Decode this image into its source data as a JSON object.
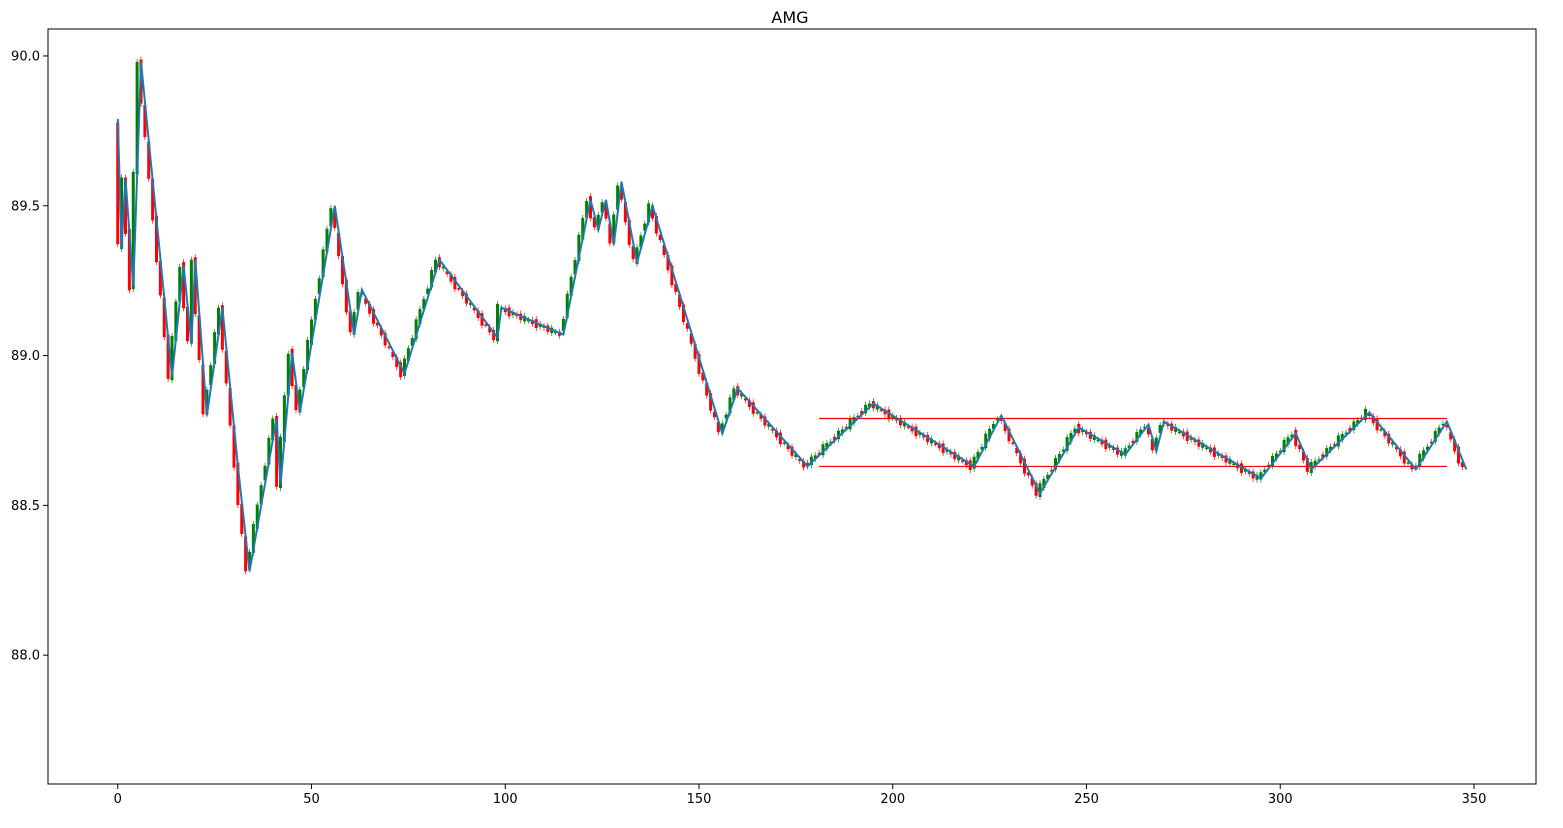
{
  "chart_data": {
    "type": "candlestick",
    "title": "AMG",
    "xlabel": "",
    "ylabel": "",
    "xlim": [
      -18,
      366
    ],
    "ylim": [
      87.57,
      90.09
    ],
    "x_ticks": [
      0,
      50,
      100,
      150,
      200,
      250,
      300,
      350
    ],
    "y_ticks": [
      88.0,
      88.5,
      89.0,
      89.5,
      90.0
    ],
    "x_tick_labels": [
      "0",
      "50",
      "100",
      "150",
      "200",
      "250",
      "300",
      "350"
    ],
    "y_tick_labels": [
      "88.0",
      "88.5",
      "89.0",
      "89.5",
      "90.0"
    ],
    "grid": false,
    "colors": {
      "up": "#008000",
      "down": "#ff0000",
      "zigzag": "#1f77b4",
      "channel": "#ff0000",
      "axes": "#000000"
    },
    "zigzag_points": [
      [
        0,
        89.79
      ],
      [
        1,
        89.36
      ],
      [
        2,
        89.59
      ],
      [
        4,
        89.23
      ],
      [
        6,
        89.98
      ],
      [
        14,
        88.93
      ],
      [
        17,
        89.3
      ],
      [
        19,
        89.04
      ],
      [
        20,
        89.32
      ],
      [
        23,
        88.8
      ],
      [
        27,
        89.16
      ],
      [
        31,
        88.63
      ],
      [
        34,
        88.28
      ],
      [
        41,
        88.79
      ],
      [
        42,
        88.57
      ],
      [
        45,
        89.01
      ],
      [
        47,
        88.81
      ],
      [
        56,
        89.5
      ],
      [
        61,
        89.07
      ],
      [
        63,
        89.22
      ],
      [
        74,
        88.94
      ],
      [
        83,
        89.32
      ],
      [
        98,
        89.06
      ],
      [
        99,
        89.16
      ],
      [
        115,
        89.07
      ],
      [
        122,
        89.52
      ],
      [
        124,
        89.42
      ],
      [
        126,
        89.52
      ],
      [
        128,
        89.37
      ],
      [
        130,
        89.58
      ],
      [
        134,
        89.31
      ],
      [
        138,
        89.5
      ],
      [
        156,
        88.74
      ],
      [
        160,
        88.89
      ],
      [
        178,
        88.63
      ],
      [
        195,
        88.84
      ],
      [
        221,
        88.63
      ],
      [
        228,
        88.8
      ],
      [
        238,
        88.54
      ],
      [
        248,
        88.76
      ],
      [
        260,
        88.67
      ],
      [
        266,
        88.77
      ],
      [
        268,
        88.68
      ],
      [
        270,
        88.78
      ],
      [
        295,
        88.59
      ],
      [
        304,
        88.74
      ],
      [
        308,
        88.62
      ],
      [
        323,
        88.81
      ],
      [
        335,
        88.62
      ],
      [
        343,
        88.78
      ],
      [
        348,
        88.62
      ]
    ],
    "channel": {
      "x_start": 181,
      "x_end": 343,
      "upper": 88.79,
      "lower": 88.63
    }
  }
}
